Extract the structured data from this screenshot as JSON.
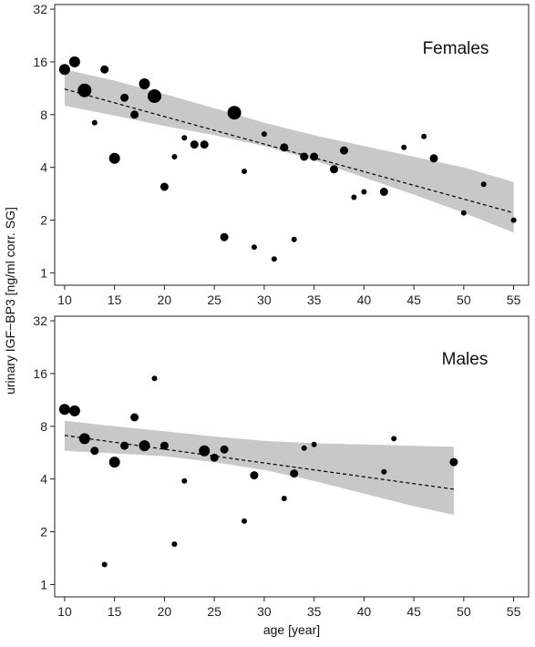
{
  "chart_data": {
    "type": "scatter",
    "ylabel": "urinary IGF−BP3 [ng/ml corr. SG]",
    "xlabel": "age [year]",
    "colors": {
      "points": "#000000",
      "band": "#c8c8c8",
      "trend": "#000000"
    },
    "panels": [
      {
        "title": "Females",
        "x_ticks": [
          "10",
          "15",
          "20",
          "25",
          "30",
          "35",
          "40",
          "45",
          "50",
          "55"
        ],
        "y_ticks": [
          "1",
          "2",
          "4",
          "8",
          "16",
          "32"
        ],
        "xlim": [
          9,
          56.5
        ],
        "ylim": [
          0.85,
          34
        ],
        "y_scale": "log2",
        "grid": false,
        "points": [
          {
            "x": 10,
            "y": 14.5,
            "size": "medium"
          },
          {
            "x": 11,
            "y": 16,
            "size": "medium"
          },
          {
            "x": 12,
            "y": 11,
            "size": "large"
          },
          {
            "x": 13,
            "y": 7.2,
            "size": "tiny"
          },
          {
            "x": 14,
            "y": 14.5,
            "size": "small"
          },
          {
            "x": 15,
            "y": 4.5,
            "size": "medium"
          },
          {
            "x": 16,
            "y": 10,
            "size": "small"
          },
          {
            "x": 17,
            "y": 8,
            "size": "small"
          },
          {
            "x": 18,
            "y": 12,
            "size": "medium"
          },
          {
            "x": 19,
            "y": 10.2,
            "size": "large"
          },
          {
            "x": 20,
            "y": 3.1,
            "size": "small"
          },
          {
            "x": 21,
            "y": 4.6,
            "size": "tiny"
          },
          {
            "x": 22,
            "y": 5.9,
            "size": "tiny"
          },
          {
            "x": 23,
            "y": 5.4,
            "size": "small"
          },
          {
            "x": 24,
            "y": 5.4,
            "size": "small"
          },
          {
            "x": 26,
            "y": 1.6,
            "size": "small"
          },
          {
            "x": 27,
            "y": 8.2,
            "size": "large"
          },
          {
            "x": 28,
            "y": 3.8,
            "size": "tiny"
          },
          {
            "x": 29,
            "y": 1.4,
            "size": "tiny"
          },
          {
            "x": 30,
            "y": 6.2,
            "size": "tiny"
          },
          {
            "x": 31,
            "y": 1.2,
            "size": "tiny"
          },
          {
            "x": 32,
            "y": 5.2,
            "size": "small"
          },
          {
            "x": 33,
            "y": 1.55,
            "size": "tiny"
          },
          {
            "x": 34,
            "y": 4.6,
            "size": "small"
          },
          {
            "x": 35,
            "y": 4.6,
            "size": "small"
          },
          {
            "x": 37,
            "y": 3.9,
            "size": "small"
          },
          {
            "x": 38,
            "y": 5,
            "size": "small"
          },
          {
            "x": 39,
            "y": 2.7,
            "size": "tiny"
          },
          {
            "x": 40,
            "y": 2.9,
            "size": "tiny"
          },
          {
            "x": 42,
            "y": 2.9,
            "size": "small"
          },
          {
            "x": 44,
            "y": 5.2,
            "size": "tiny"
          },
          {
            "x": 46,
            "y": 6,
            "size": "tiny"
          },
          {
            "x": 47,
            "y": 4.5,
            "size": "small"
          },
          {
            "x": 50,
            "y": 2.2,
            "size": "tiny"
          },
          {
            "x": 52,
            "y": 3.2,
            "size": "tiny"
          },
          {
            "x": 55,
            "y": 2,
            "size": "tiny"
          }
        ],
        "trend": {
          "x": [
            10,
            55
          ],
          "y": [
            11.2,
            2.2
          ]
        },
        "band": {
          "x": [
            10,
            15,
            20,
            25,
            30,
            35,
            40,
            45,
            50,
            55
          ],
          "upper": [
            14.5,
            12.5,
            10.5,
            8.7,
            7.2,
            6.1,
            5.3,
            4.6,
            4.0,
            3.3
          ],
          "lower": [
            9.0,
            7.9,
            6.9,
            6.1,
            5.3,
            4.4,
            3.5,
            2.8,
            2.2,
            1.7
          ]
        }
      },
      {
        "title": "Males",
        "x_ticks": [
          "10",
          "15",
          "20",
          "25",
          "30",
          "35",
          "40",
          "45",
          "50",
          "55"
        ],
        "y_ticks": [
          "1",
          "2",
          "4",
          "8",
          "16",
          "32"
        ],
        "xlim": [
          9,
          56.5
        ],
        "ylim": [
          0.85,
          34
        ],
        "y_scale": "log2",
        "grid": false,
        "points": [
          {
            "x": 10,
            "y": 10,
            "size": "medium"
          },
          {
            "x": 11,
            "y": 9.8,
            "size": "medium"
          },
          {
            "x": 12,
            "y": 6.8,
            "size": "medium"
          },
          {
            "x": 13,
            "y": 5.8,
            "size": "small"
          },
          {
            "x": 14,
            "y": 1.3,
            "size": "tiny"
          },
          {
            "x": 15,
            "y": 5,
            "size": "medium"
          },
          {
            "x": 16,
            "y": 6.2,
            "size": "small"
          },
          {
            "x": 17,
            "y": 9,
            "size": "small"
          },
          {
            "x": 18,
            "y": 6.2,
            "size": "medium"
          },
          {
            "x": 19,
            "y": 15,
            "size": "tiny"
          },
          {
            "x": 20,
            "y": 6.2,
            "size": "small"
          },
          {
            "x": 21,
            "y": 1.7,
            "size": "tiny"
          },
          {
            "x": 22,
            "y": 3.9,
            "size": "tiny"
          },
          {
            "x": 24,
            "y": 5.8,
            "size": "medium"
          },
          {
            "x": 25,
            "y": 5.3,
            "size": "small"
          },
          {
            "x": 26,
            "y": 5.9,
            "size": "small"
          },
          {
            "x": 28,
            "y": 2.3,
            "size": "tiny"
          },
          {
            "x": 29,
            "y": 4.2,
            "size": "small"
          },
          {
            "x": 32,
            "y": 3.1,
            "size": "tiny"
          },
          {
            "x": 33,
            "y": 4.3,
            "size": "small"
          },
          {
            "x": 34,
            "y": 6,
            "size": "tiny"
          },
          {
            "x": 35,
            "y": 6.3,
            "size": "tiny"
          },
          {
            "x": 42,
            "y": 4.4,
            "size": "tiny"
          },
          {
            "x": 43,
            "y": 6.8,
            "size": "tiny"
          },
          {
            "x": 49,
            "y": 5,
            "size": "small"
          }
        ],
        "trend": {
          "x": [
            10,
            49
          ],
          "y": [
            7.1,
            3.5
          ]
        },
        "band": {
          "x": [
            10,
            15,
            20,
            25,
            30,
            35,
            40,
            45,
            49
          ],
          "upper": [
            8.6,
            8.0,
            7.5,
            7.0,
            6.6,
            6.4,
            6.3,
            6.2,
            6.1
          ],
          "lower": [
            5.8,
            5.6,
            5.4,
            5.0,
            4.5,
            3.9,
            3.3,
            2.8,
            2.5
          ]
        }
      }
    ]
  }
}
